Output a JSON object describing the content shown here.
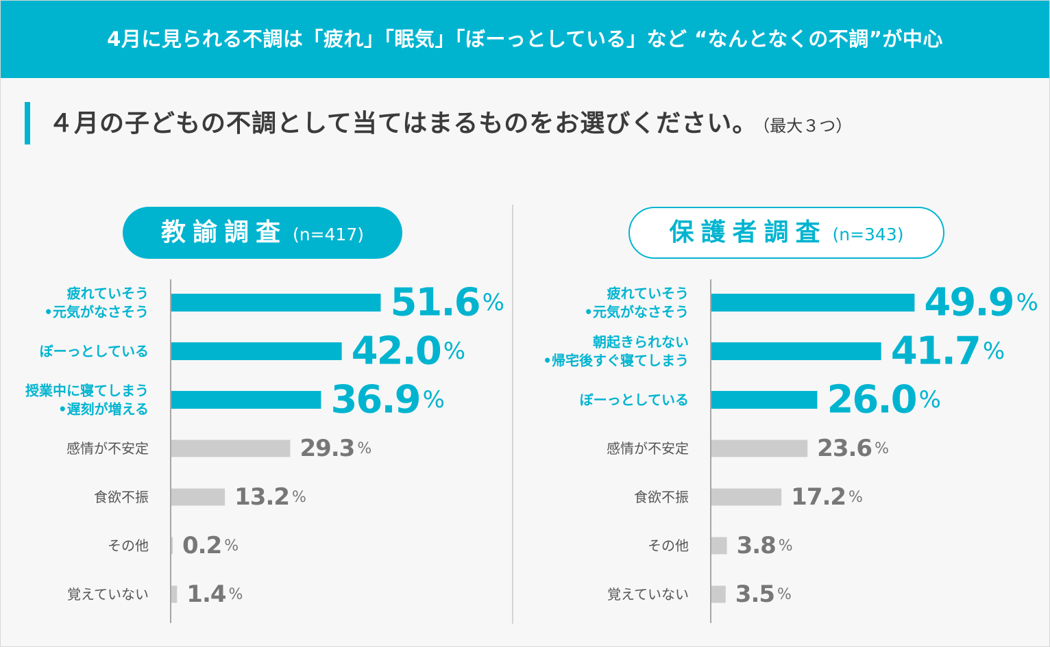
{
  "header": {
    "title": "4月に見られる不調は「疲れ」「眠気」「ぼーっとしている」など “なんとなくの不調”が中心"
  },
  "question": {
    "text": "４月の子どもの不調として当てはまるものをお選びください。",
    "note": "（最大３つ）"
  },
  "colors": {
    "accent": "#00b4d0",
    "muted_bar": "#cccccc",
    "muted_text": "#555555"
  },
  "chart_data": [
    {
      "type": "bar",
      "orientation": "horizontal",
      "title": "教諭調査",
      "sample": "(n=417)",
      "unit": "%",
      "categories": [
        [
          "疲れていそう",
          "•元気がなさそう"
        ],
        [
          "ぼーっとしている"
        ],
        [
          "授業中に寝てしまう",
          "•遅刻が増える"
        ],
        [
          "感情が不安定"
        ],
        [
          "食欲不振"
        ],
        [
          "その他"
        ],
        [
          "覚えていない"
        ]
      ],
      "values": [
        51.6,
        42.0,
        36.9,
        29.3,
        13.2,
        0.2,
        1.4
      ],
      "value_labels": [
        "51.6",
        "42.0",
        "36.9",
        "29.3",
        "13.2",
        "0.2",
        "1.4"
      ],
      "highlight_count": 3,
      "xlim": [
        0,
        100
      ]
    },
    {
      "type": "bar",
      "orientation": "horizontal",
      "title": "保護者調査",
      "sample": "(n=343)",
      "unit": "%",
      "categories": [
        [
          "疲れていそう",
          "•元気がなさそう"
        ],
        [
          "朝起きられない",
          "•帰宅後すぐ寝てしまう"
        ],
        [
          "ぼーっとしている"
        ],
        [
          "感情が不安定"
        ],
        [
          "食欲不振"
        ],
        [
          "その他"
        ],
        [
          "覚えていない"
        ]
      ],
      "values": [
        49.9,
        41.7,
        26.0,
        23.6,
        17.2,
        3.8,
        3.5
      ],
      "value_labels": [
        "49.9",
        "41.7",
        "26.0",
        "23.6",
        "17.2",
        "3.8",
        "3.5"
      ],
      "highlight_count": 3,
      "xlim": [
        0,
        100
      ]
    }
  ]
}
